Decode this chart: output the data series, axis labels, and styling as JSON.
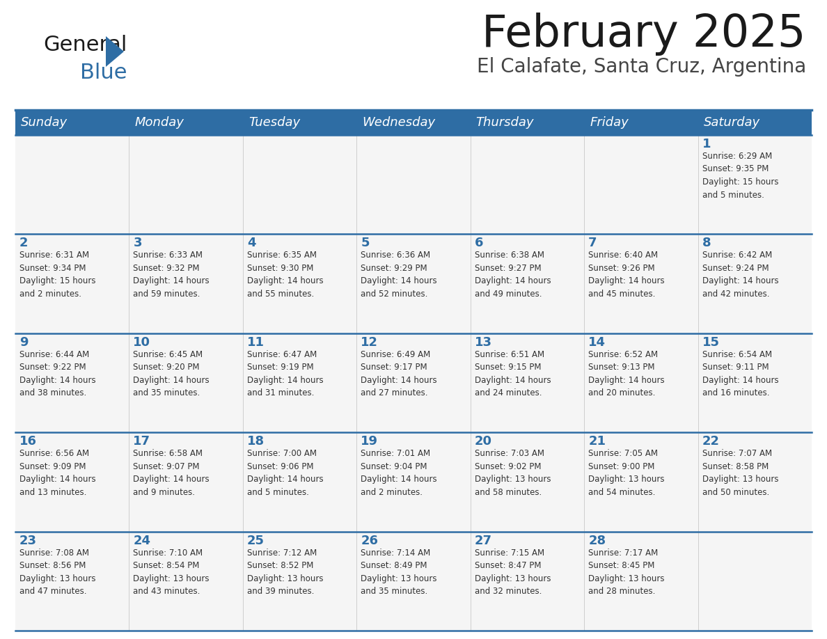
{
  "title": "February 2025",
  "subtitle": "El Calafate, Santa Cruz, Argentina",
  "header_bg": "#2E6DA4",
  "header_text_color": "#FFFFFF",
  "cell_bg": "#F5F5F5",
  "day_number_color": "#2E6DA4",
  "cell_text_color": "#333333",
  "divider_color": "#2E6DA4",
  "days_of_week": [
    "Sunday",
    "Monday",
    "Tuesday",
    "Wednesday",
    "Thursday",
    "Friday",
    "Saturday"
  ],
  "calendar": [
    [
      {
        "day": "",
        "info": ""
      },
      {
        "day": "",
        "info": ""
      },
      {
        "day": "",
        "info": ""
      },
      {
        "day": "",
        "info": ""
      },
      {
        "day": "",
        "info": ""
      },
      {
        "day": "",
        "info": ""
      },
      {
        "day": "1",
        "info": "Sunrise: 6:29 AM\nSunset: 9:35 PM\nDaylight: 15 hours\nand 5 minutes."
      }
    ],
    [
      {
        "day": "2",
        "info": "Sunrise: 6:31 AM\nSunset: 9:34 PM\nDaylight: 15 hours\nand 2 minutes."
      },
      {
        "day": "3",
        "info": "Sunrise: 6:33 AM\nSunset: 9:32 PM\nDaylight: 14 hours\nand 59 minutes."
      },
      {
        "day": "4",
        "info": "Sunrise: 6:35 AM\nSunset: 9:30 PM\nDaylight: 14 hours\nand 55 minutes."
      },
      {
        "day": "5",
        "info": "Sunrise: 6:36 AM\nSunset: 9:29 PM\nDaylight: 14 hours\nand 52 minutes."
      },
      {
        "day": "6",
        "info": "Sunrise: 6:38 AM\nSunset: 9:27 PM\nDaylight: 14 hours\nand 49 minutes."
      },
      {
        "day": "7",
        "info": "Sunrise: 6:40 AM\nSunset: 9:26 PM\nDaylight: 14 hours\nand 45 minutes."
      },
      {
        "day": "8",
        "info": "Sunrise: 6:42 AM\nSunset: 9:24 PM\nDaylight: 14 hours\nand 42 minutes."
      }
    ],
    [
      {
        "day": "9",
        "info": "Sunrise: 6:44 AM\nSunset: 9:22 PM\nDaylight: 14 hours\nand 38 minutes."
      },
      {
        "day": "10",
        "info": "Sunrise: 6:45 AM\nSunset: 9:20 PM\nDaylight: 14 hours\nand 35 minutes."
      },
      {
        "day": "11",
        "info": "Sunrise: 6:47 AM\nSunset: 9:19 PM\nDaylight: 14 hours\nand 31 minutes."
      },
      {
        "day": "12",
        "info": "Sunrise: 6:49 AM\nSunset: 9:17 PM\nDaylight: 14 hours\nand 27 minutes."
      },
      {
        "day": "13",
        "info": "Sunrise: 6:51 AM\nSunset: 9:15 PM\nDaylight: 14 hours\nand 24 minutes."
      },
      {
        "day": "14",
        "info": "Sunrise: 6:52 AM\nSunset: 9:13 PM\nDaylight: 14 hours\nand 20 minutes."
      },
      {
        "day": "15",
        "info": "Sunrise: 6:54 AM\nSunset: 9:11 PM\nDaylight: 14 hours\nand 16 minutes."
      }
    ],
    [
      {
        "day": "16",
        "info": "Sunrise: 6:56 AM\nSunset: 9:09 PM\nDaylight: 14 hours\nand 13 minutes."
      },
      {
        "day": "17",
        "info": "Sunrise: 6:58 AM\nSunset: 9:07 PM\nDaylight: 14 hours\nand 9 minutes."
      },
      {
        "day": "18",
        "info": "Sunrise: 7:00 AM\nSunset: 9:06 PM\nDaylight: 14 hours\nand 5 minutes."
      },
      {
        "day": "19",
        "info": "Sunrise: 7:01 AM\nSunset: 9:04 PM\nDaylight: 14 hours\nand 2 minutes."
      },
      {
        "day": "20",
        "info": "Sunrise: 7:03 AM\nSunset: 9:02 PM\nDaylight: 13 hours\nand 58 minutes."
      },
      {
        "day": "21",
        "info": "Sunrise: 7:05 AM\nSunset: 9:00 PM\nDaylight: 13 hours\nand 54 minutes."
      },
      {
        "day": "22",
        "info": "Sunrise: 7:07 AM\nSunset: 8:58 PM\nDaylight: 13 hours\nand 50 minutes."
      }
    ],
    [
      {
        "day": "23",
        "info": "Sunrise: 7:08 AM\nSunset: 8:56 PM\nDaylight: 13 hours\nand 47 minutes."
      },
      {
        "day": "24",
        "info": "Sunrise: 7:10 AM\nSunset: 8:54 PM\nDaylight: 13 hours\nand 43 minutes."
      },
      {
        "day": "25",
        "info": "Sunrise: 7:12 AM\nSunset: 8:52 PM\nDaylight: 13 hours\nand 39 minutes."
      },
      {
        "day": "26",
        "info": "Sunrise: 7:14 AM\nSunset: 8:49 PM\nDaylight: 13 hours\nand 35 minutes."
      },
      {
        "day": "27",
        "info": "Sunrise: 7:15 AM\nSunset: 8:47 PM\nDaylight: 13 hours\nand 32 minutes."
      },
      {
        "day": "28",
        "info": "Sunrise: 7:17 AM\nSunset: 8:45 PM\nDaylight: 13 hours\nand 28 minutes."
      },
      {
        "day": "",
        "info": ""
      }
    ]
  ]
}
